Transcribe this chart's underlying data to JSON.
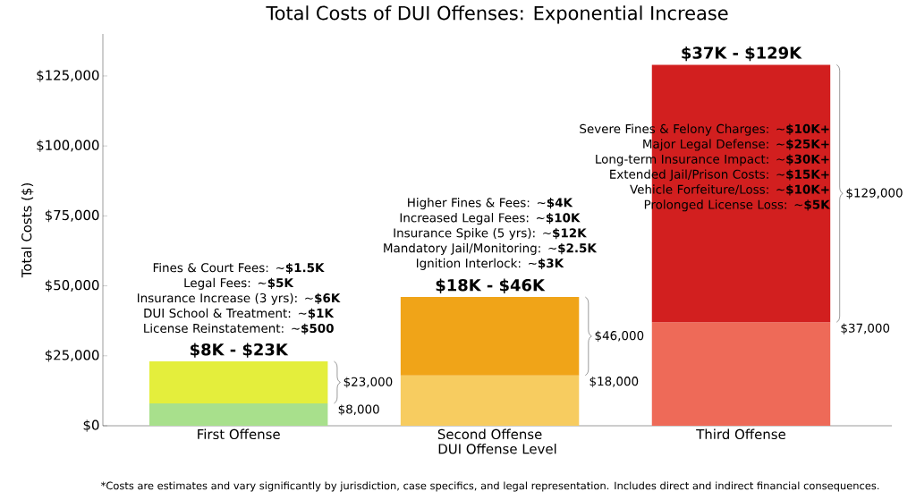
{
  "chart_data": {
    "type": "bar",
    "title": "Total Costs of DUI Offenses: Exponential Increase",
    "xlabel": "DUI Offense Level",
    "ylabel": "Total Costs ($)",
    "categories": [
      "First Offense",
      "Second Offense",
      "Third Offense"
    ],
    "stacked": true,
    "series": [
      {
        "colors": [
          "#a8e08c",
          "#f7cc60",
          "#ee6a58"
        ],
        "values": [
          8000,
          18000,
          37000
        ]
      },
      {
        "colors": [
          "#e4ee3c",
          "#f0a418",
          "#d21f1f"
        ],
        "values": [
          15000,
          28000,
          92000
        ]
      }
    ],
    "totals": [
      "$8K - $23K",
      "$18K - $46K",
      "$37K - $129K"
    ],
    "ylim": [
      0,
      140000
    ],
    "yticks": [
      {
        "value": 0,
        "label": "$0"
      },
      {
        "value": 25000,
        "label": "$25,000"
      },
      {
        "value": 50000,
        "label": "$50,000"
      },
      {
        "value": 75000,
        "label": "$75,000"
      },
      {
        "value": 100000,
        "label": "$100,000"
      },
      {
        "value": 125000,
        "label": "$125,000"
      }
    ],
    "annotations": [
      "Fines & Court Fees: ~**$1.5K**\nLegal Fees: ~**$5K**\nInsurance Increase (3 yrs): ~**$6K**\nDUI School & Treatment: ~**$1K**\nLicense Reinstatement: ~**$500**",
      "Higher Fines & Fees: ~**$4K**\nIncreased Legal Fees: ~**$10K**\nInsurance Spike (5 yrs): ~**$12K**\nMandatory Jail/Monitoring: ~**$2.5K**\nIgnition Interlock: ~**$3K**",
      "Severe Fines & Felony Charges: ~**$10K+**\nMajor Legal Defense: ~**$25K+**\nLong-term Insurance Impact: ~**$30K+**\nExtended Jail/Prison Costs: ~**$15K+**\nVehicle Forfeiture/Loss: ~**$10K+**\nProlonged License Loss: ~**$5K**",
      "$23,000",
      "$8,000",
      "$46,000",
      "$18,000",
      "$129,000",
      "$37,000",
      "*Costs are estimates and vary significantly by jurisdiction, case specifics, and legal representation. Includes direct and indirect financial consequences."
    ]
  }
}
